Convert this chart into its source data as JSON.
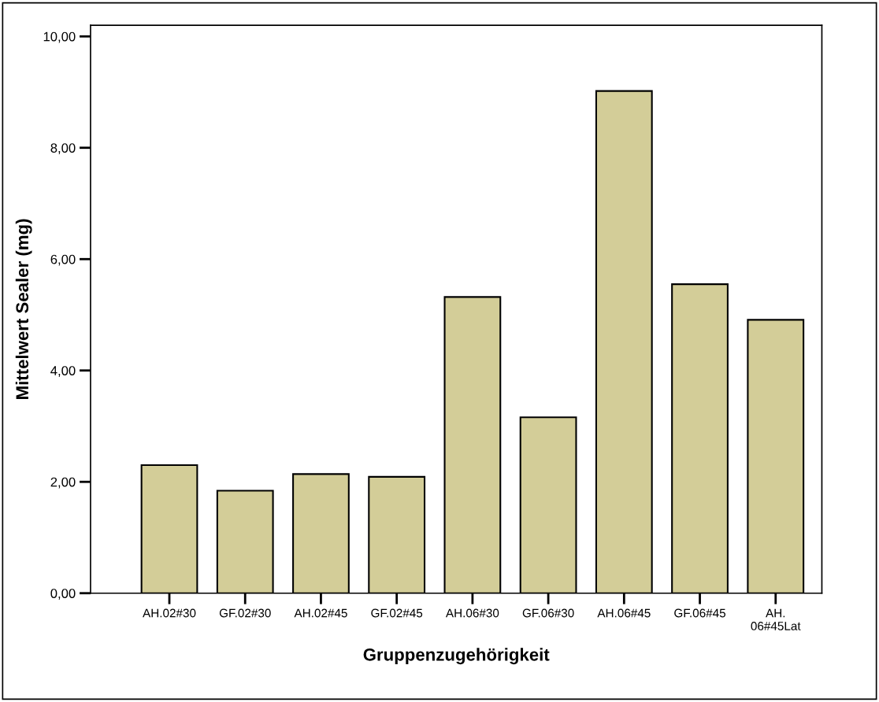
{
  "chart_data": {
    "type": "bar",
    "xlabel": "Gruppenzugehörigkeit",
    "ylabel": "Mittelwert Sealer (mg)",
    "categories": [
      "AH.02#30",
      "GF.02#30",
      "AH.02#45",
      "GF.02#45",
      "AH.06#30",
      "GF.06#30",
      "AH.06#45",
      "GF.06#45",
      "AH.\n06#45Lat"
    ],
    "values": [
      2.3,
      1.84,
      2.14,
      2.09,
      5.32,
      3.16,
      9.02,
      5.55,
      4.91
    ],
    "color": "#d3cd98",
    "ylim": [
      0,
      10.2
    ],
    "yticks": [
      {
        "value": 0,
        "label": "0,00"
      },
      {
        "value": 2,
        "label": "2,00"
      },
      {
        "value": 4,
        "label": "4,00"
      },
      {
        "value": 6,
        "label": "6,00"
      },
      {
        "value": 8,
        "label": "8,00"
      },
      {
        "value": 10,
        "label": "10,00"
      }
    ],
    "grid": false,
    "legend": false
  }
}
